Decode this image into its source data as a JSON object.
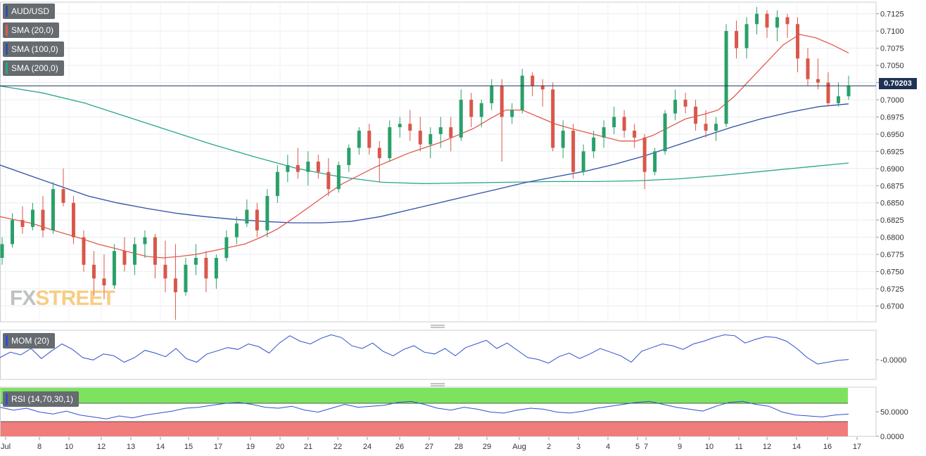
{
  "chart_data": {
    "type": "candlestick",
    "symbol": "AUD/USD",
    "last_price": "0.70203",
    "last_price_label": "0.70203",
    "indicators": {
      "sma20": {
        "label": "SMA (20,0)",
        "color": "#e05a4f"
      },
      "sma100": {
        "label": "SMA (100,0)",
        "color": "#2f4fa8"
      },
      "sma200": {
        "label": "SMA (200,0)",
        "color": "#2aa58a"
      },
      "mom": {
        "label": "MOM (20)",
        "color": "#2f4fd0"
      },
      "rsi": {
        "label": "RSI (14,70,30,1)",
        "color": "#2f4fd0"
      }
    },
    "price_axis": {
      "ticks": [
        "0.7125",
        "0.7100",
        "0.7075",
        "0.7050",
        "0.7025",
        "0.7000",
        "0.6975",
        "0.6950",
        "0.6925",
        "0.6900",
        "0.6875",
        "0.6850",
        "0.6825",
        "0.6800",
        "0.6775",
        "0.6750",
        "0.6725",
        "0.6700"
      ],
      "range": [
        0.6677,
        0.7142
      ]
    },
    "mom_axis": {
      "ticks": [
        "-0.0000"
      ]
    },
    "rsi_axis": {
      "ticks": [
        "50.0000",
        "0.0000"
      ]
    },
    "x_labels": [
      "Jul",
      "8",
      "10",
      "12",
      "13",
      "14",
      "15",
      "17",
      "19",
      "20",
      "21",
      "22",
      "24",
      "26",
      "27",
      "28",
      "29",
      "Aug",
      "2",
      "3",
      "4",
      "5",
      "7",
      "9",
      "10",
      "11",
      "12",
      "14",
      "16",
      "17"
    ],
    "ohlc": [
      [
        0.677,
        0.68,
        0.676,
        0.679
      ],
      [
        0.679,
        0.6835,
        0.6785,
        0.6825
      ],
      [
        0.6825,
        0.6845,
        0.6805,
        0.6815
      ],
      [
        0.6815,
        0.685,
        0.681,
        0.684
      ],
      [
        0.684,
        0.686,
        0.68,
        0.681
      ],
      [
        0.681,
        0.688,
        0.6805,
        0.687
      ],
      [
        0.687,
        0.69,
        0.6845,
        0.685
      ],
      [
        0.685,
        0.686,
        0.679,
        0.68
      ],
      [
        0.68,
        0.681,
        0.675,
        0.676
      ],
      [
        0.676,
        0.678,
        0.6715,
        0.674
      ],
      [
        0.674,
        0.6775,
        0.671,
        0.673
      ],
      [
        0.673,
        0.679,
        0.6725,
        0.678
      ],
      [
        0.678,
        0.68,
        0.675,
        0.676
      ],
      [
        0.676,
        0.68,
        0.6745,
        0.679
      ],
      [
        0.679,
        0.681,
        0.677,
        0.68
      ],
      [
        0.68,
        0.6805,
        0.674,
        0.676
      ],
      [
        0.676,
        0.6795,
        0.672,
        0.674
      ],
      [
        0.674,
        0.679,
        0.668,
        0.672
      ],
      [
        0.672,
        0.677,
        0.6715,
        0.676
      ],
      [
        0.676,
        0.679,
        0.6745,
        0.677
      ],
      [
        0.677,
        0.678,
        0.672,
        0.674
      ],
      [
        0.674,
        0.6775,
        0.6725,
        0.677
      ],
      [
        0.677,
        0.681,
        0.6765,
        0.68
      ],
      [
        0.68,
        0.683,
        0.679,
        0.682
      ],
      [
        0.682,
        0.6855,
        0.6815,
        0.684
      ],
      [
        0.684,
        0.685,
        0.68,
        0.681
      ],
      [
        0.681,
        0.687,
        0.68,
        0.686
      ],
      [
        0.686,
        0.6905,
        0.685,
        0.6895
      ],
      [
        0.6895,
        0.692,
        0.688,
        0.6905
      ],
      [
        0.6905,
        0.693,
        0.6885,
        0.6895
      ],
      [
        0.6895,
        0.6925,
        0.6875,
        0.691
      ],
      [
        0.691,
        0.692,
        0.6885,
        0.6895
      ],
      [
        0.6895,
        0.6915,
        0.686,
        0.687
      ],
      [
        0.687,
        0.691,
        0.6865,
        0.6905
      ],
      [
        0.6905,
        0.6935,
        0.6895,
        0.693
      ],
      [
        0.693,
        0.696,
        0.692,
        0.6955
      ],
      [
        0.6955,
        0.6965,
        0.692,
        0.693
      ],
      [
        0.693,
        0.694,
        0.688,
        0.6915
      ],
      [
        0.6915,
        0.697,
        0.691,
        0.696
      ],
      [
        0.696,
        0.6975,
        0.6945,
        0.6965
      ],
      [
        0.6965,
        0.6985,
        0.694,
        0.6955
      ],
      [
        0.6955,
        0.6975,
        0.6925,
        0.6935
      ],
      [
        0.6935,
        0.696,
        0.6915,
        0.695
      ],
      [
        0.695,
        0.6975,
        0.693,
        0.696
      ],
      [
        0.696,
        0.6975,
        0.6925,
        0.6945
      ],
      [
        0.6945,
        0.7015,
        0.694,
        0.7
      ],
      [
        0.7,
        0.701,
        0.696,
        0.6975
      ],
      [
        0.6975,
        0.7,
        0.696,
        0.6995
      ],
      [
        0.6995,
        0.703,
        0.6985,
        0.702
      ],
      [
        0.702,
        0.703,
        0.691,
        0.6975
      ],
      [
        0.6975,
        0.6995,
        0.6965,
        0.6985
      ],
      [
        0.6985,
        0.7045,
        0.698,
        0.7035
      ],
      [
        0.7035,
        0.704,
        0.7005,
        0.702
      ],
      [
        0.702,
        0.703,
        0.699,
        0.7015
      ],
      [
        0.7015,
        0.7025,
        0.6925,
        0.693
      ],
      [
        0.693,
        0.697,
        0.6915,
        0.6955
      ],
      [
        0.6955,
        0.6965,
        0.6885,
        0.6895
      ],
      [
        0.6895,
        0.6935,
        0.689,
        0.6925
      ],
      [
        0.6925,
        0.6955,
        0.6915,
        0.6945
      ],
      [
        0.6945,
        0.697,
        0.693,
        0.696
      ],
      [
        0.696,
        0.699,
        0.695,
        0.6975
      ],
      [
        0.6975,
        0.6985,
        0.6945,
        0.6955
      ],
      [
        0.6955,
        0.6965,
        0.693,
        0.6945
      ],
      [
        0.6945,
        0.695,
        0.687,
        0.6895
      ],
      [
        0.6895,
        0.693,
        0.689,
        0.6925
      ],
      [
        0.6925,
        0.6985,
        0.692,
        0.698
      ],
      [
        0.698,
        0.7015,
        0.697,
        0.7
      ],
      [
        0.7,
        0.701,
        0.698,
        0.699
      ],
      [
        0.699,
        0.7,
        0.6955,
        0.6965
      ],
      [
        0.6965,
        0.6985,
        0.6945,
        0.6955
      ],
      [
        0.6955,
        0.6975,
        0.694,
        0.6965
      ],
      [
        0.6965,
        0.711,
        0.696,
        0.71
      ],
      [
        0.71,
        0.7115,
        0.706,
        0.7075
      ],
      [
        0.7075,
        0.712,
        0.706,
        0.711
      ],
      [
        0.711,
        0.7135,
        0.7095,
        0.7125
      ],
      [
        0.7125,
        0.713,
        0.709,
        0.7105
      ],
      [
        0.7105,
        0.713,
        0.7085,
        0.712
      ],
      [
        0.712,
        0.7125,
        0.709,
        0.711
      ],
      [
        0.711,
        0.712,
        0.704,
        0.706
      ],
      [
        0.706,
        0.7075,
        0.702,
        0.703
      ],
      [
        0.703,
        0.706,
        0.7015,
        0.7025
      ],
      [
        0.7025,
        0.704,
        0.699,
        0.6995
      ],
      [
        0.6995,
        0.7025,
        0.699,
        0.7005
      ],
      [
        0.7005,
        0.7035,
        0.7,
        0.702
      ]
    ],
    "sma20": [
      0.683,
      0.6825,
      0.682,
      0.6812,
      0.6805,
      0.6798,
      0.679,
      0.6784,
      0.6778,
      0.6772,
      0.677,
      0.6772,
      0.6775,
      0.678,
      0.6785,
      0.679,
      0.68,
      0.6812,
      0.6828,
      0.6845,
      0.6862,
      0.6878,
      0.689,
      0.6902,
      0.6912,
      0.6922,
      0.693,
      0.6938,
      0.6948,
      0.6958,
      0.6972,
      0.6985,
      0.6985,
      0.6975,
      0.6965,
      0.6958,
      0.6952,
      0.6946,
      0.694,
      0.694,
      0.6948,
      0.696,
      0.6972,
      0.6978,
      0.6985,
      0.7005,
      0.703,
      0.7055,
      0.708,
      0.7095,
      0.709,
      0.708,
      0.7068
    ],
    "sma100": [
      0.6905,
      0.689,
      0.6875,
      0.686,
      0.685,
      0.6842,
      0.6835,
      0.683,
      0.6826,
      0.6823,
      0.6821,
      0.6821,
      0.6823,
      0.683,
      0.684,
      0.685,
      0.686,
      0.687,
      0.688,
      0.6888,
      0.6896,
      0.6906,
      0.6918,
      0.6932,
      0.6946,
      0.696,
      0.6972,
      0.6982,
      0.699,
      0.6994
    ],
    "sma200": [
      0.702,
      0.701,
      0.6995,
      0.6975,
      0.6955,
      0.6935,
      0.6917,
      0.69,
      0.6888,
      0.688,
      0.6878,
      0.6879,
      0.688,
      0.6881,
      0.6881,
      0.6882,
      0.6885,
      0.689,
      0.6896,
      0.6902,
      0.6908
    ],
    "mom": [
      40,
      52,
      46,
      60,
      38,
      55,
      70,
      58,
      40,
      35,
      48,
      44,
      30,
      40,
      56,
      50,
      42,
      60,
      38,
      30,
      48,
      55,
      62,
      58,
      70,
      64,
      50,
      72,
      88,
      76,
      70,
      82,
      90,
      84,
      66,
      60,
      72,
      54,
      44,
      58,
      66,
      52,
      48,
      60,
      44,
      62,
      70,
      78,
      60,
      72,
      56,
      40,
      36,
      28,
      42,
      50,
      38,
      48,
      60,
      52,
      44,
      30,
      54,
      62,
      70,
      66,
      58,
      70,
      76,
      84,
      90,
      88,
      72,
      80,
      86,
      84,
      76,
      60,
      40,
      26,
      30,
      34,
      36
    ],
    "rsi": [
      60,
      54,
      58,
      50,
      46,
      52,
      44,
      40,
      36,
      42,
      38,
      44,
      48,
      52,
      58,
      60,
      64,
      68,
      70,
      66,
      60,
      58,
      62,
      54,
      50,
      58,
      66,
      60,
      62,
      64,
      70,
      72,
      66,
      58,
      54,
      60,
      56,
      50,
      48,
      54,
      58,
      56,
      50,
      48,
      52,
      58,
      62,
      66,
      70,
      72,
      66,
      60,
      56,
      52,
      62,
      70,
      72,
      66,
      62,
      50,
      44,
      42,
      40,
      44,
      46
    ]
  }
}
